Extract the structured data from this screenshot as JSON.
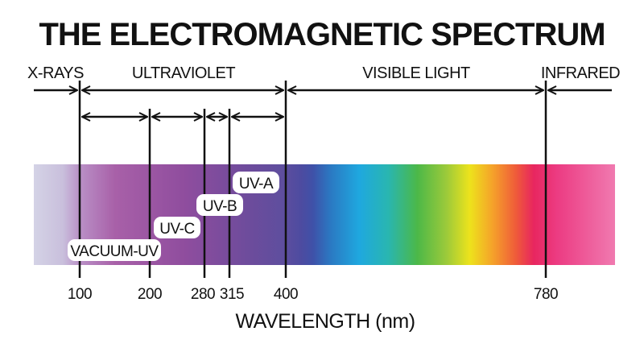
{
  "title": "THE ELECTROMAGNETIC SPECTRUM",
  "regions": [
    {
      "label": "X-RAYS"
    },
    {
      "label": "ULTRAVIOLET"
    },
    {
      "label": "VISIBLE LIGHT"
    },
    {
      "label": "INFRARED"
    }
  ],
  "uv_bands": [
    {
      "label": "VACUUM-UV",
      "from_nm": 100,
      "to_nm": 200
    },
    {
      "label": "UV-C",
      "from_nm": 200,
      "to_nm": 280
    },
    {
      "label": "UV-B",
      "from_nm": 280,
      "to_nm": 315
    },
    {
      "label": "UV-A",
      "from_nm": 315,
      "to_nm": 400
    }
  ],
  "ticks": [
    {
      "label": "100",
      "nm": 100
    },
    {
      "label": "200",
      "nm": 200
    },
    {
      "label": "280",
      "nm": 280
    },
    {
      "label": "315",
      "nm": 315
    },
    {
      "label": "400",
      "nm": 400
    },
    {
      "label": "780",
      "nm": 780
    }
  ],
  "axis_title": "WAVELENGTH (nm)",
  "colors": {
    "text": "#111111",
    "line": "#111111",
    "label_bg": "#ffffff"
  }
}
